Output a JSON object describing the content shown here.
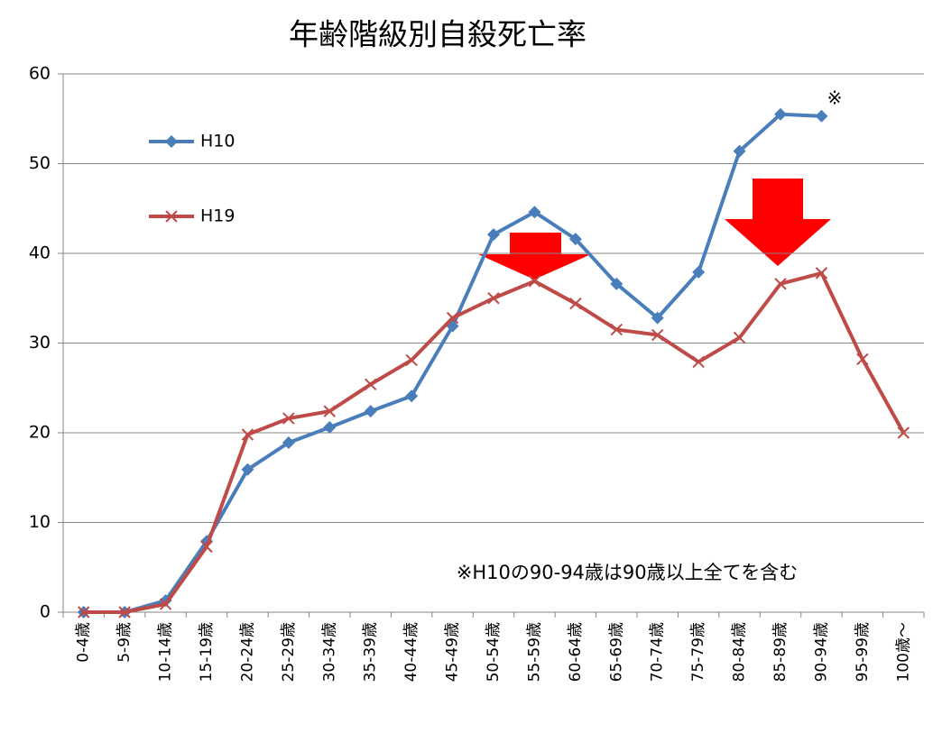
{
  "chart_data": {
    "type": "line",
    "title": "年齢階級別自殺死亡率",
    "categories": [
      "0-4歳",
      "5-9歳",
      "10-14歳",
      "15-19歳",
      "20-24歳",
      "25-29歳",
      "30-34歳",
      "35-39歳",
      "40-44歳",
      "45-49歳",
      "50-54歳",
      "55-59歳",
      "60-64歳",
      "65-69歳",
      "70-74歳",
      "75-79歳",
      "80-84歳",
      "85-89歳",
      "90-94歳",
      "95-99歳",
      "100歳～"
    ],
    "series": [
      {
        "name": "H10",
        "color": "#4a7ebb",
        "marker": "diamond",
        "values": [
          0,
          0,
          1.3,
          7.9,
          15.9,
          18.9,
          20.6,
          22.4,
          24.1,
          31.9,
          42.1,
          44.6,
          41.6,
          36.6,
          32.8,
          37.9,
          51.4,
          55.5,
          55.3,
          null,
          null
        ]
      },
      {
        "name": "H19",
        "color": "#be4b48",
        "marker": "x",
        "values": [
          0,
          0,
          0.9,
          7.3,
          19.8,
          21.6,
          22.4,
          25.4,
          28.1,
          32.8,
          35.0,
          36.9,
          34.4,
          31.5,
          30.9,
          27.9,
          30.6,
          36.6,
          37.8,
          28.2,
          20.0
        ]
      }
    ],
    "ylim": [
      0,
      60
    ],
    "yticks": [
      0,
      10,
      20,
      30,
      40,
      50,
      60
    ],
    "grid": true,
    "legend": "upper left",
    "annotations": [
      "※",
      "※H10の90-94歳は90歳以上全てを含む"
    ]
  }
}
